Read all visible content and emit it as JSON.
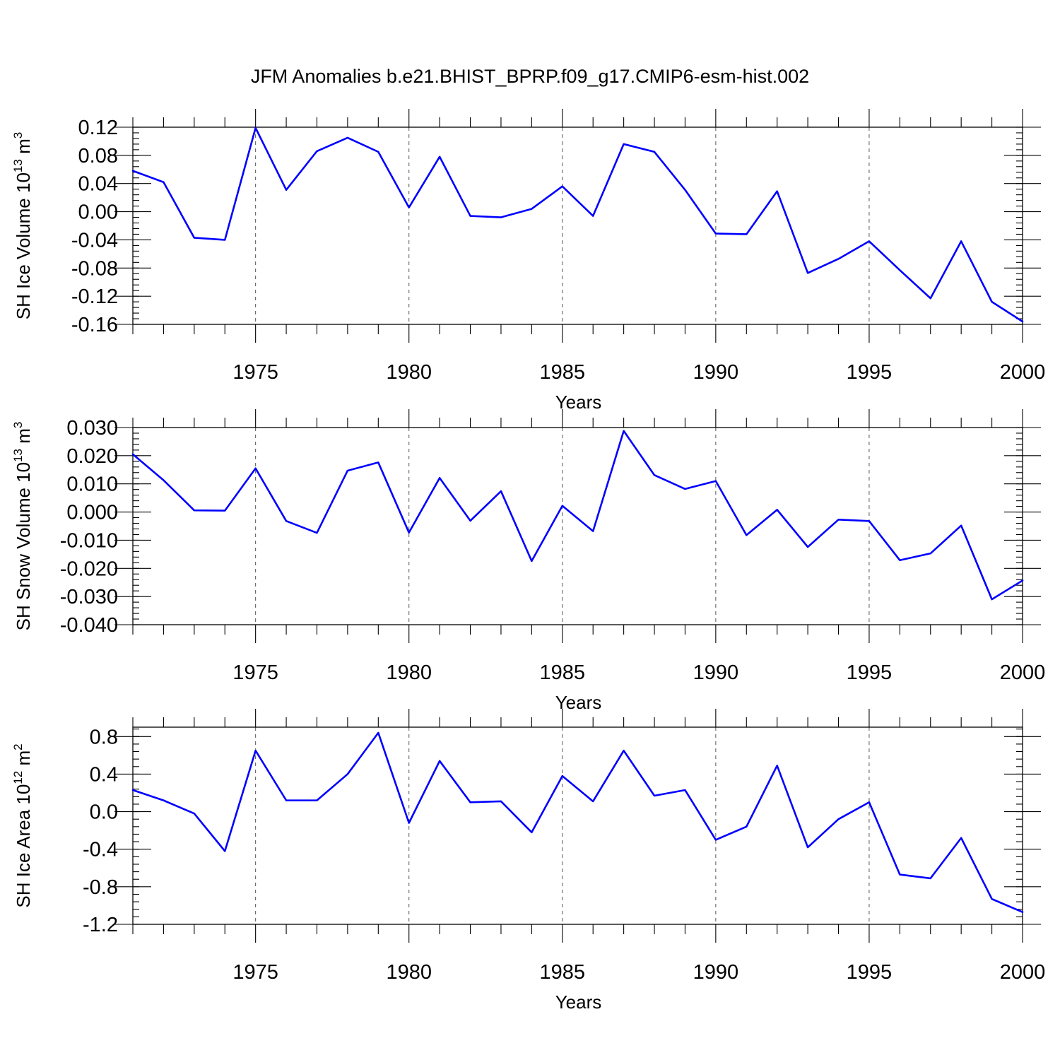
{
  "title": "JFM Anomalies b.e21.BHIST_BPRP.f09_g17.CMIP6-esm-hist.002",
  "line_color": "#0000ff",
  "chart_data": [
    {
      "type": "line",
      "title": "JFM Anomalies b.e21.BHIST_BPRP.f09_g17.CMIP6-esm-hist.002",
      "xlabel": "Years",
      "ylabel_text": "SH Ice Volume 10",
      "ylabel_exp": "13",
      "ylabel_unit": "m",
      "ylabel_unit_exp": "3",
      "xlim": [
        1971,
        2000
      ],
      "ylim": [
        -0.16,
        0.12
      ],
      "yticks": [
        -0.16,
        -0.12,
        -0.08,
        -0.04,
        0.0,
        0.04,
        0.08,
        0.12
      ],
      "ytick_labels": [
        "-0.16",
        "-0.12",
        "-0.08",
        "-0.04",
        "0.00",
        "0.04",
        "0.08",
        "0.12"
      ],
      "yminor_step": 0.008,
      "xticks": [
        1975,
        1980,
        1985,
        1990,
        1995,
        2000
      ],
      "xtick_labels": [
        "1975",
        "1980",
        "1985",
        "1990",
        "1995",
        "2000"
      ],
      "grid": "dashed vertical at labeled years",
      "x": [
        1971,
        1972,
        1973,
        1974,
        1975,
        1976,
        1977,
        1978,
        1979,
        1980,
        1981,
        1982,
        1983,
        1984,
        1985,
        1986,
        1987,
        1988,
        1989,
        1990,
        1991,
        1992,
        1993,
        1994,
        1995,
        1996,
        1997,
        1998,
        1999,
        2000
      ],
      "series": [
        {
          "name": "SH Ice Volume",
          "values": [
            0.058,
            0.042,
            -0.037,
            -0.04,
            0.119,
            0.031,
            0.086,
            0.105,
            0.085,
            0.006,
            0.078,
            -0.006,
            -0.008,
            0.004,
            0.036,
            -0.006,
            0.096,
            0.085,
            0.031,
            -0.031,
            -0.032,
            0.029,
            -0.087,
            -0.067,
            -0.042,
            -0.083,
            -0.123,
            -0.042,
            -0.128,
            -0.156
          ]
        }
      ]
    },
    {
      "type": "line",
      "xlabel": "Years",
      "ylabel_text": "SH Snow Volume 10",
      "ylabel_exp": "13",
      "ylabel_unit": "m",
      "ylabel_unit_exp": "3",
      "xlim": [
        1971,
        2000
      ],
      "ylim": [
        -0.04,
        0.03
      ],
      "yticks": [
        -0.04,
        -0.03,
        -0.02,
        -0.01,
        0.0,
        0.01,
        0.02,
        0.03
      ],
      "ytick_labels": [
        "-0.040",
        "-0.030",
        "-0.020",
        "-0.010",
        "0.000",
        "0.010",
        "0.020",
        "0.030"
      ],
      "yminor_step": 0.002,
      "xticks": [
        1975,
        1980,
        1985,
        1990,
        1995,
        2000
      ],
      "xtick_labels": [
        "1975",
        "1980",
        "1985",
        "1990",
        "1995",
        "2000"
      ],
      "grid": "dashed vertical at labeled years",
      "x": [
        1971,
        1972,
        1973,
        1974,
        1975,
        1976,
        1977,
        1978,
        1979,
        1980,
        1981,
        1982,
        1983,
        1984,
        1985,
        1986,
        1987,
        1988,
        1989,
        1990,
        1991,
        1992,
        1993,
        1994,
        1995,
        1996,
        1997,
        1998,
        1999,
        2000
      ],
      "series": [
        {
          "name": "SH Snow Volume",
          "values": [
            0.0205,
            0.0113,
            0.0006,
            0.0005,
            0.0155,
            -0.0032,
            -0.0074,
            0.0147,
            0.0176,
            -0.0073,
            0.0121,
            -0.0031,
            0.0074,
            -0.0174,
            0.0022,
            -0.0068,
            0.0288,
            0.0131,
            0.0082,
            0.011,
            -0.0082,
            0.0008,
            -0.0124,
            -0.0027,
            -0.0032,
            -0.0171,
            -0.0147,
            -0.0048,
            -0.031,
            -0.0243
          ]
        }
      ]
    },
    {
      "type": "line",
      "xlabel": "Years",
      "ylabel_text": "SH Ice Area 10",
      "ylabel_exp": "12",
      "ylabel_unit": "m",
      "ylabel_unit_exp": "2",
      "xlim": [
        1971,
        2000
      ],
      "ylim": [
        -1.2,
        0.9
      ],
      "yticks": [
        -1.2,
        -0.8,
        -0.4,
        0.0,
        0.4,
        0.8
      ],
      "ytick_labels": [
        "-1.2",
        "-0.8",
        "-0.4",
        "0.0",
        "0.4",
        "0.8"
      ],
      "yminor_step": 0.08,
      "xticks": [
        1975,
        1980,
        1985,
        1990,
        1995,
        2000
      ],
      "xtick_labels": [
        "1975",
        "1980",
        "1985",
        "1990",
        "1995",
        "2000"
      ],
      "grid": "dashed vertical at labeled years",
      "x": [
        1971,
        1972,
        1973,
        1974,
        1975,
        1976,
        1977,
        1978,
        1979,
        1980,
        1981,
        1982,
        1983,
        1984,
        1985,
        1986,
        1987,
        1988,
        1989,
        1990,
        1991,
        1992,
        1993,
        1994,
        1995,
        1996,
        1997,
        1998,
        1999,
        2000
      ],
      "series": [
        {
          "name": "SH Ice Area",
          "values": [
            0.23,
            0.12,
            -0.02,
            -0.42,
            0.65,
            0.12,
            0.12,
            0.4,
            0.84,
            -0.12,
            0.54,
            0.1,
            0.11,
            -0.22,
            0.38,
            0.11,
            0.65,
            0.17,
            0.23,
            -0.3,
            -0.16,
            0.49,
            -0.38,
            -0.08,
            0.1,
            -0.67,
            -0.71,
            -0.28,
            -0.93,
            -1.07
          ]
        }
      ]
    }
  ]
}
